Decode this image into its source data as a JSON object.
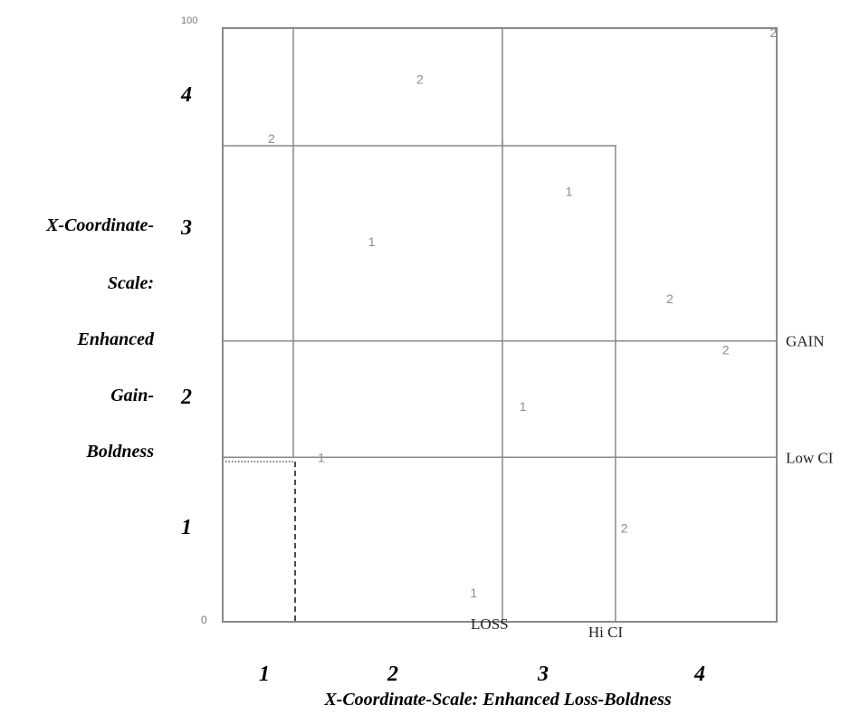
{
  "chart_data": {
    "type": "scatter",
    "xlabel": "X-Coordinate-Scale: Enhanced Loss-Boldness",
    "ylabel_lines": [
      "X-Coordinate-",
      "Scale:",
      "Enhanced",
      "Gain-",
      "Boldness"
    ],
    "xlim": [
      0,
      100
    ],
    "ylim": [
      0,
      100
    ],
    "axis_end_labels": {
      "origin": "0",
      "y_max": "100"
    },
    "x_quartile_labels": [
      "1",
      "2",
      "3",
      "4"
    ],
    "y_quartile_labels": [
      "1",
      "2",
      "3",
      "4"
    ],
    "reference_lines": {
      "horizontal": [
        {
          "label": "GAIN",
          "y": 47.3
        },
        {
          "label": "Low CI",
          "y": 27.7
        }
      ],
      "vertical": [
        {
          "label": "LOSS",
          "x": 50.5
        },
        {
          "label": "Hi CI",
          "x": 70.9
        }
      ]
    },
    "points": [
      {
        "x": 8.8,
        "y": 81.4,
        "label": "2"
      },
      {
        "x": 35.6,
        "y": 91.4,
        "label": "2"
      },
      {
        "x": 99.4,
        "y": 99.2,
        "label": "2"
      },
      {
        "x": 26.9,
        "y": 64.0,
        "label": "1"
      },
      {
        "x": 62.5,
        "y": 72.5,
        "label": "1"
      },
      {
        "x": 80.7,
        "y": 54.4,
        "label": "2"
      },
      {
        "x": 90.8,
        "y": 45.8,
        "label": "2"
      },
      {
        "x": 54.2,
        "y": 36.3,
        "label": "1"
      },
      {
        "x": 17.8,
        "y": 27.7,
        "label": "1"
      },
      {
        "x": 72.5,
        "y": 15.8,
        "label": "2"
      },
      {
        "x": 45.3,
        "y": 4.9,
        "label": "1"
      }
    ]
  }
}
